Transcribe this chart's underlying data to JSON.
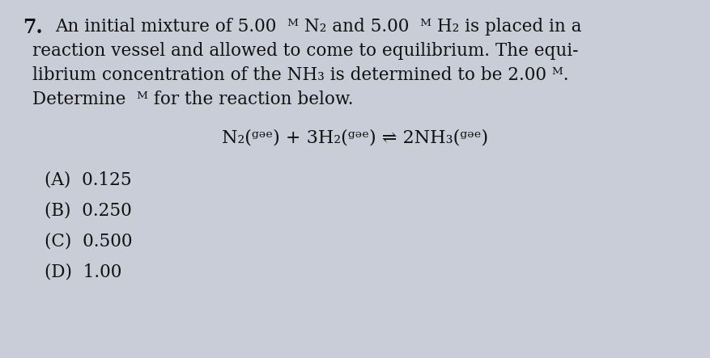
{
  "background_color": "#c8cdd8",
  "text_color": "#111111",
  "question_number": "7.",
  "line1": "An initial mixture of 5.00  ᴹ N₂ and 5.00  ᴹ H₂ is placed in a",
  "line2": "reaction vessel and allowed to come to equilibrium. The equi-",
  "line3": "librium concentration of the NH₃ is determined to be 2.00 ᴹ.",
  "line4": "Determine  ᴹ for the reaction below.",
  "equation": "N₂(ᵍᵊᵉ) + 3H₂(ᵍᵊᵉ) ⇌ 2NH₃(ᵍᵊᵉ)",
  "choices": [
    "(A)  0.125",
    "(B)  0.250",
    "(C)  0.500",
    "(D)  1.00"
  ],
  "paragraph_fontsize": 15.5,
  "equation_fontsize": 16,
  "choice_fontsize": 15.5,
  "number_fontsize": 17
}
